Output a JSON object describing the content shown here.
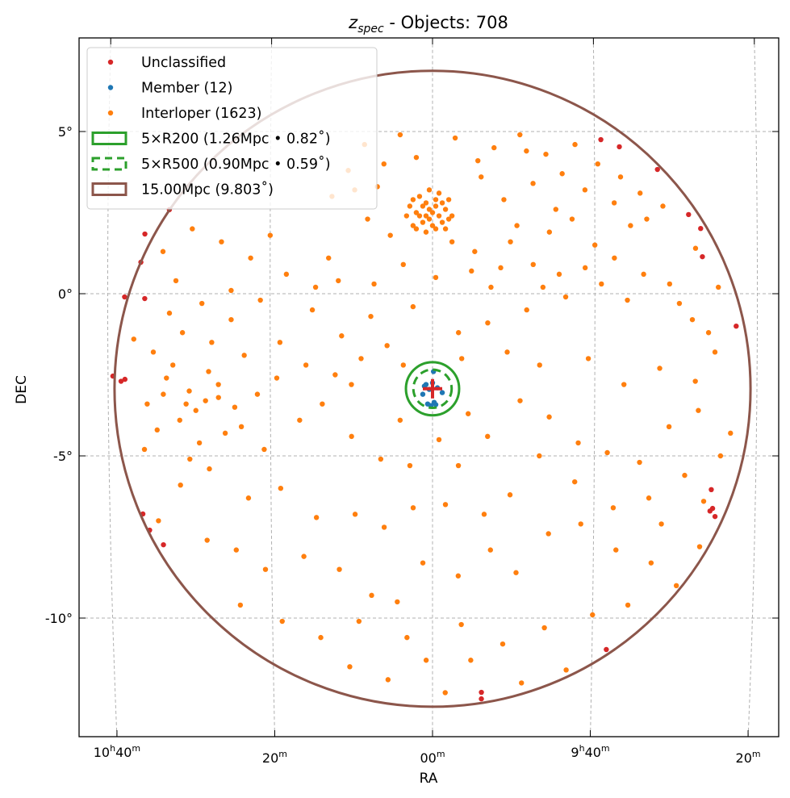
{
  "chart_data": {
    "type": "scatter",
    "title_main": "z",
    "title_sub": "spec",
    "title_rest": " - Objects: 708",
    "xlabel": "RA",
    "ylabel": "DEC",
    "xlim_ra_deg": [
      163.2,
      132.3
    ],
    "ylim_dec_deg": [
      -13.71,
      7.82
    ],
    "center": {
      "ra": 150.0,
      "dec": -2.93
    },
    "grid": true,
    "legend_position": "top-left",
    "yticks": [
      {
        "v": 5,
        "label": "5°"
      },
      {
        "v": 0,
        "label": "0°"
      },
      {
        "v": -5,
        "label": "-5°"
      },
      {
        "v": -10,
        "label": "-10°"
      }
    ],
    "xticks": [
      {
        "v": 160,
        "h": "10",
        "hs": "h",
        "m": "40",
        "ms": "m"
      },
      {
        "v": 155,
        "h": "",
        "hs": "",
        "m": "20",
        "ms": "m"
      },
      {
        "v": 150,
        "h": "",
        "hs": "",
        "m": "00",
        "ms": "m"
      },
      {
        "v": 145,
        "h": "9",
        "hs": "h",
        "m": "40",
        "ms": "m"
      },
      {
        "v": 140,
        "h": "",
        "hs": "",
        "m": "20",
        "ms": "m"
      }
    ],
    "legend": [
      {
        "label": "Unclassified",
        "kind": "dot",
        "color": "#d62728"
      },
      {
        "label": "Member (12)",
        "kind": "dot",
        "color": "#1f77b4"
      },
      {
        "label": "Interloper (1623)",
        "kind": "dot",
        "color": "#ff7f0e"
      },
      {
        "label": "5×R200 (1.26Mpc • 0.82˚)",
        "kind": "rect",
        "color": "#2ca02c"
      },
      {
        "label": "5×R500 (0.90Mpc • 0.59˚)",
        "kind": "dash",
        "color": "#2ca02c"
      },
      {
        "label": "15.00Mpc (9.803˚)",
        "kind": "rect",
        "color": "#8c564b"
      }
    ],
    "circles": [
      {
        "name": "r200",
        "radius_deg": 0.82,
        "color": "#2ca02c",
        "dashed": false
      },
      {
        "name": "r500",
        "radius_deg": 0.59,
        "color": "#2ca02c",
        "dashed": true
      },
      {
        "name": "15mpc",
        "radius_deg": 9.803,
        "color": "#8c564b",
        "dashed": false
      }
    ],
    "series": [
      {
        "name": "Unclassified",
        "color": "#d62728",
        "points": [
          [
            159.48,
            -2.64
          ],
          [
            159.85,
            -2.54
          ],
          [
            159.6,
            -2.7
          ],
          [
            158.98,
            0.97
          ],
          [
            158.86,
            -0.15
          ],
          [
            159.48,
            -0.1
          ],
          [
            158.86,
            1.84
          ],
          [
            158.11,
            2.59
          ],
          [
            158.98,
            -6.79
          ],
          [
            158.78,
            -7.29
          ],
          [
            158.36,
            -7.74
          ],
          [
            148.46,
            -12.29
          ],
          [
            148.46,
            -12.49
          ],
          [
            144.55,
            -10.97
          ],
          [
            144.8,
            4.75
          ],
          [
            144.23,
            4.53
          ],
          [
            143.06,
            3.83
          ],
          [
            142.11,
            2.44
          ],
          [
            141.74,
            2.01
          ],
          [
            141.69,
            1.14
          ],
          [
            140.65,
            -1.0
          ],
          [
            141.37,
            -6.04
          ],
          [
            141.32,
            -6.62
          ],
          [
            141.24,
            -6.87
          ],
          [
            141.4,
            -6.7
          ]
        ]
      },
      {
        "name": "Member",
        "color": "#1f77b4",
        "points": [
          [
            149.97,
            -2.4
          ],
          [
            150.2,
            -2.8
          ],
          [
            150.0,
            -2.75
          ],
          [
            150.3,
            -3.1
          ],
          [
            149.7,
            -3.05
          ],
          [
            150.05,
            -3.45
          ],
          [
            149.9,
            -3.42
          ],
          [
            150.1,
            -2.95
          ],
          [
            149.85,
            -2.9
          ],
          [
            150.15,
            -3.4
          ],
          [
            149.95,
            -3.35
          ],
          [
            150.25,
            -2.85
          ]
        ]
      },
      {
        "name": "Interloper",
        "color": "#ff7f0e",
        "points": [
          [
            150.1,
            2.6
          ],
          [
            149.8,
            2.4
          ],
          [
            150.3,
            2.2
          ],
          [
            149.9,
            2.9
          ],
          [
            150.2,
            2.8
          ],
          [
            150.5,
            2.5
          ],
          [
            149.6,
            2.6
          ],
          [
            150.0,
            2.1
          ],
          [
            150.4,
            3.0
          ],
          [
            149.7,
            2.2
          ],
          [
            150.1,
            3.2
          ],
          [
            150.6,
            2.1
          ],
          [
            149.5,
            2.9
          ],
          [
            150.2,
            2.4
          ],
          [
            149.9,
            2.0
          ],
          [
            150.3,
            2.7
          ],
          [
            149.8,
            3.1
          ],
          [
            150.0,
            2.5
          ],
          [
            150.7,
            2.7
          ],
          [
            149.4,
            2.4
          ],
          [
            150.2,
            1.9
          ],
          [
            149.9,
            2.7
          ],
          [
            150.4,
            2.4
          ],
          [
            149.6,
            2.0
          ],
          [
            150.8,
            2.4
          ],
          [
            150.1,
            2.3
          ],
          [
            150.5,
            2.0
          ],
          [
            149.5,
            2.3
          ],
          [
            150.6,
            2.9
          ],
          [
            149.7,
            2.8
          ],
          [
            151.0,
            4.9
          ],
          [
            152.1,
            4.6
          ],
          [
            150.5,
            4.2
          ],
          [
            149.3,
            4.8
          ],
          [
            148.1,
            4.5
          ],
          [
            147.3,
            4.9
          ],
          [
            146.5,
            4.3
          ],
          [
            145.6,
            4.6
          ],
          [
            144.9,
            4.0
          ],
          [
            146.9,
            3.4
          ],
          [
            148.5,
            3.6
          ],
          [
            147.8,
            2.9
          ],
          [
            146.2,
            2.6
          ],
          [
            145.3,
            3.2
          ],
          [
            144.4,
            2.8
          ],
          [
            143.6,
            3.1
          ],
          [
            142.9,
            2.7
          ],
          [
            143.9,
            2.1
          ],
          [
            145.0,
            1.5
          ],
          [
            146.4,
            1.9
          ],
          [
            147.6,
            1.6
          ],
          [
            148.7,
            1.3
          ],
          [
            149.4,
            1.6
          ],
          [
            151.3,
            1.8
          ],
          [
            152.0,
            2.3
          ],
          [
            152.6,
            3.8
          ],
          [
            151.7,
            3.3
          ],
          [
            153.2,
            1.1
          ],
          [
            152.9,
            0.4
          ],
          [
            151.8,
            0.3
          ],
          [
            150.9,
            0.9
          ],
          [
            149.9,
            0.5
          ],
          [
            148.8,
            0.7
          ],
          [
            147.9,
            0.8
          ],
          [
            146.9,
            0.9
          ],
          [
            146.1,
            0.6
          ],
          [
            145.3,
            0.8
          ],
          [
            144.4,
            1.1
          ],
          [
            143.5,
            0.6
          ],
          [
            142.7,
            0.3
          ],
          [
            141.9,
            1.4
          ],
          [
            141.2,
            0.2
          ],
          [
            142.4,
            -0.3
          ],
          [
            144.0,
            -0.2
          ],
          [
            145.9,
            -0.1
          ],
          [
            147.1,
            -0.5
          ],
          [
            148.3,
            -0.9
          ],
          [
            149.2,
            -1.2
          ],
          [
            150.6,
            -0.4
          ],
          [
            151.9,
            -0.7
          ],
          [
            152.8,
            -1.3
          ],
          [
            153.7,
            -0.5
          ],
          [
            154.5,
            0.6
          ],
          [
            155.6,
            1.1
          ],
          [
            156.5,
            1.6
          ],
          [
            157.4,
            2.0
          ],
          [
            158.3,
            1.3
          ],
          [
            157.9,
            0.4
          ],
          [
            157.1,
            -0.3
          ],
          [
            156.2,
            -0.8
          ],
          [
            155.3,
            -0.2
          ],
          [
            154.7,
            -1.5
          ],
          [
            153.9,
            -2.2
          ],
          [
            153.0,
            -2.5
          ],
          [
            152.2,
            -2.0
          ],
          [
            151.4,
            -1.6
          ],
          [
            155.8,
            -1.9
          ],
          [
            156.8,
            -1.5
          ],
          [
            157.7,
            -1.2
          ],
          [
            158.6,
            -1.8
          ],
          [
            158.2,
            -2.6
          ],
          [
            157.5,
            -3.0
          ],
          [
            157.0,
            -3.3
          ],
          [
            157.3,
            -3.6
          ],
          [
            157.8,
            -3.9
          ],
          [
            156.6,
            -2.8
          ],
          [
            156.1,
            -3.5
          ],
          [
            155.4,
            -3.1
          ],
          [
            158.8,
            -3.4
          ],
          [
            158.5,
            -4.2
          ],
          [
            157.2,
            -4.6
          ],
          [
            156.4,
            -4.3
          ],
          [
            155.2,
            -4.8
          ],
          [
            154.1,
            -3.9
          ],
          [
            153.4,
            -3.4
          ],
          [
            152.5,
            -4.4
          ],
          [
            151.6,
            -5.1
          ],
          [
            150.7,
            -5.3
          ],
          [
            149.2,
            -5.3
          ],
          [
            148.3,
            -4.4
          ],
          [
            147.3,
            -3.3
          ],
          [
            146.4,
            -3.8
          ],
          [
            145.5,
            -4.6
          ],
          [
            144.6,
            -4.9
          ],
          [
            143.6,
            -5.2
          ],
          [
            142.7,
            -4.1
          ],
          [
            141.8,
            -3.6
          ],
          [
            142.2,
            -5.6
          ],
          [
            143.3,
            -6.3
          ],
          [
            144.4,
            -6.6
          ],
          [
            145.6,
            -5.8
          ],
          [
            146.7,
            -5.0
          ],
          [
            147.6,
            -6.2
          ],
          [
            148.4,
            -6.8
          ],
          [
            149.6,
            -6.5
          ],
          [
            150.6,
            -6.6
          ],
          [
            151.5,
            -7.2
          ],
          [
            152.4,
            -6.8
          ],
          [
            153.6,
            -6.9
          ],
          [
            154.7,
            -6.0
          ],
          [
            155.7,
            -6.3
          ],
          [
            156.9,
            -5.4
          ],
          [
            157.8,
            -5.9
          ],
          [
            158.5,
            -7.0
          ],
          [
            157.0,
            -7.6
          ],
          [
            156.1,
            -7.9
          ],
          [
            155.2,
            -8.5
          ],
          [
            154.0,
            -8.1
          ],
          [
            152.9,
            -8.5
          ],
          [
            151.9,
            -9.3
          ],
          [
            151.1,
            -9.5
          ],
          [
            150.3,
            -8.3
          ],
          [
            149.2,
            -8.7
          ],
          [
            148.2,
            -7.9
          ],
          [
            147.4,
            -8.6
          ],
          [
            146.4,
            -7.4
          ],
          [
            145.4,
            -7.1
          ],
          [
            144.3,
            -7.9
          ],
          [
            143.2,
            -8.3
          ],
          [
            142.4,
            -9.0
          ],
          [
            141.7,
            -7.8
          ],
          [
            143.9,
            -9.6
          ],
          [
            145.0,
            -9.9
          ],
          [
            146.5,
            -10.3
          ],
          [
            147.8,
            -10.8
          ],
          [
            148.8,
            -11.3
          ],
          [
            150.2,
            -11.3
          ],
          [
            151.4,
            -11.9
          ],
          [
            152.6,
            -11.5
          ],
          [
            153.5,
            -10.6
          ],
          [
            154.7,
            -10.1
          ],
          [
            156.0,
            -9.6
          ],
          [
            149.6,
            -12.3
          ],
          [
            147.2,
            -12.0
          ],
          [
            145.8,
            -11.6
          ],
          [
            149.1,
            -10.2
          ],
          [
            150.8,
            -10.6
          ],
          [
            152.3,
            -10.1
          ],
          [
            149.8,
            -4.5
          ],
          [
            150.9,
            -2.2
          ],
          [
            149.1,
            -2.0
          ],
          [
            151.0,
            -3.9
          ],
          [
            148.9,
            -3.7
          ],
          [
            152.5,
            -2.8
          ],
          [
            147.7,
            -1.8
          ],
          [
            146.7,
            -2.2
          ],
          [
            145.2,
            -2.0
          ],
          [
            144.1,
            -2.8
          ],
          [
            143.0,
            -2.3
          ],
          [
            141.5,
            -1.2
          ],
          [
            142.0,
            -0.8
          ],
          [
            153.6,
            0.2
          ],
          [
            155.0,
            1.8
          ],
          [
            156.2,
            0.1
          ],
          [
            158.1,
            -0.6
          ],
          [
            159.2,
            -1.4
          ],
          [
            158.9,
            -4.8
          ],
          [
            157.5,
            -5.1
          ],
          [
            158.0,
            -2.2
          ],
          [
            156.9,
            -2.4
          ],
          [
            157.6,
            -3.4
          ],
          [
            158.3,
            -3.1
          ],
          [
            156.6,
            -3.2
          ],
          [
            155.9,
            -4.1
          ],
          [
            154.8,
            -2.6
          ],
          [
            153.1,
            3.0
          ],
          [
            152.4,
            3.2
          ],
          [
            151.5,
            4.0
          ],
          [
            148.6,
            4.1
          ],
          [
            147.1,
            4.4
          ],
          [
            146.0,
            3.7
          ],
          [
            144.2,
            3.6
          ],
          [
            143.4,
            2.3
          ],
          [
            145.7,
            2.3
          ],
          [
            147.4,
            2.1
          ],
          [
            148.2,
            0.2
          ],
          [
            146.6,
            0.2
          ],
          [
            144.8,
            0.3
          ],
          [
            141.3,
            -1.8
          ],
          [
            141.9,
            -2.7
          ],
          [
            140.8,
            -4.3
          ],
          [
            141.1,
            -5.0
          ],
          [
            142.9,
            -7.1
          ],
          [
            141.6,
            -6.4
          ]
        ]
      }
    ]
  }
}
